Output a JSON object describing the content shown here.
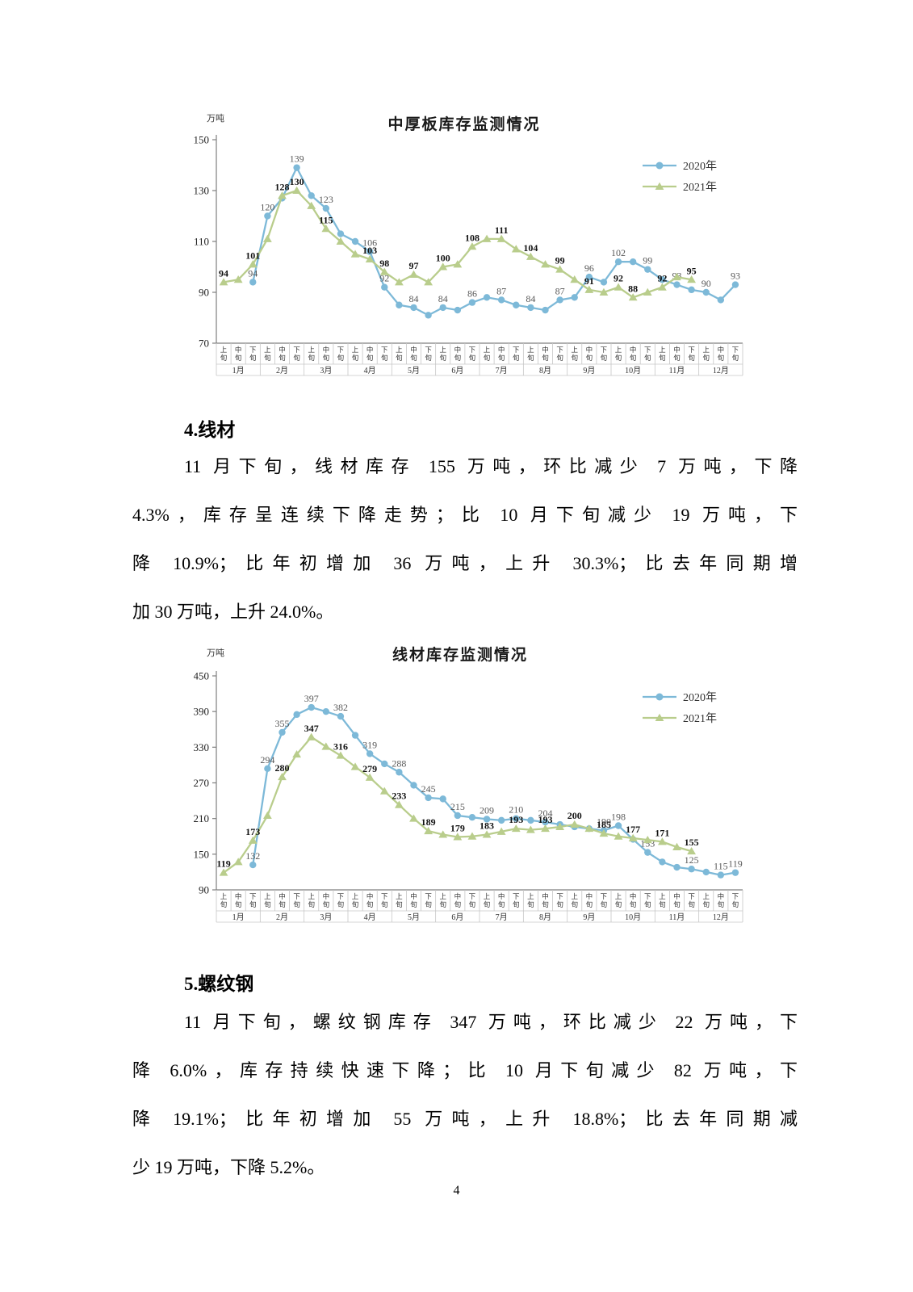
{
  "page": {
    "number": "4"
  },
  "sections": [
    {
      "heading": "4.线材",
      "lines": [
        "11 月下旬，线材库存 155 万吨，环比减少 7 万吨，下降",
        "4.3%，库存呈连续下降走势；比 10 月下旬减少 19 万吨，下",
        "降 10.9%；比年初增加 36 万吨，上升 30.3%；比去年同期增",
        "加 30 万吨，上升 24.0%。"
      ]
    },
    {
      "heading": "5.螺纹钢",
      "lines": [
        "11 月下旬，螺纹钢库存 347 万吨，环比减少 22 万吨，下",
        "降 6.0%，库存持续快速下降；比 10 月下旬减少 82 万吨，下",
        "降 19.1%；比年初增加 55 万吨，上升 18.8%；比去年同期减",
        "少 19 万吨，下降 5.2%。"
      ]
    }
  ],
  "colors": {
    "series_2020": "#7db9d8",
    "series_2021": "#b9cd8c",
    "label_2020": "#595959",
    "label_2021": "#111111",
    "axis_line": "#7f7f7f",
    "table_border": "#c6c6c6"
  },
  "chart_data": [
    {
      "id": "plate",
      "type": "line",
      "title": "中厚板库存监测情况",
      "unit_label": "万吨",
      "ylim": [
        70,
        150
      ],
      "yticks": [
        150,
        130,
        110,
        90,
        70
      ],
      "months": [
        "1月",
        "2月",
        "3月",
        "4月",
        "5月",
        "6月",
        "7月",
        "8月",
        "9月",
        "10月",
        "11月",
        "12月"
      ],
      "periods": [
        "上旬",
        "中旬",
        "下旬"
      ],
      "legend_position": "top-right",
      "grid": false,
      "series": [
        {
          "name": "2020年",
          "color": "#7db9d8",
          "marker": "circle",
          "label_style": "gray",
          "start_index": 2,
          "values": [
            94,
            120,
            127,
            139,
            128,
            123,
            113,
            110,
            106,
            92,
            85,
            84,
            81,
            84,
            83,
            86,
            88,
            87,
            85,
            84,
            83,
            87,
            88,
            96,
            94,
            102,
            102,
            99,
            95,
            93,
            91,
            90,
            87,
            93
          ],
          "point_labels": [
            [
              2,
              94
            ],
            [
              3,
              120
            ],
            [
              5,
              139
            ],
            [
              7,
              123
            ],
            [
              10,
              106
            ],
            [
              11,
              92
            ],
            [
              13,
              84
            ],
            [
              15,
              84
            ],
            [
              17,
              86
            ],
            [
              19,
              87
            ],
            [
              21,
              84
            ],
            [
              23,
              87
            ],
            [
              25,
              96
            ],
            [
              27,
              102
            ],
            [
              29,
              99
            ],
            [
              31,
              93
            ],
            [
              33,
              90
            ],
            [
              35,
              93
            ]
          ]
        },
        {
          "name": "2021年",
          "color": "#b9cd8c",
          "marker": "triangle",
          "label_style": "bold",
          "start_index": 0,
          "values": [
            94,
            95,
            101,
            111,
            128,
            130,
            124,
            115,
            110,
            105,
            103,
            98,
            94,
            97,
            94,
            100,
            101,
            108,
            111,
            111,
            107,
            104,
            101,
            99,
            95,
            91,
            90,
            92,
            88,
            90,
            92,
            96,
            95
          ],
          "point_labels": [
            [
              0,
              94
            ],
            [
              2,
              101
            ],
            [
              4,
              128
            ],
            [
              5,
              130
            ],
            [
              7,
              115
            ],
            [
              10,
              103
            ],
            [
              11,
              98
            ],
            [
              13,
              97
            ],
            [
              15,
              100
            ],
            [
              17,
              108
            ],
            [
              19,
              111
            ],
            [
              21,
              104
            ],
            [
              23,
              99
            ],
            [
              25,
              91
            ],
            [
              27,
              92
            ],
            [
              28,
              88
            ],
            [
              30,
              92
            ],
            [
              32,
              95
            ]
          ]
        }
      ]
    },
    {
      "id": "wire",
      "type": "line",
      "title": "线材库存监测情况",
      "unit_label": "万吨",
      "ylim": [
        90,
        450
      ],
      "yticks": [
        450,
        390,
        330,
        270,
        210,
        150,
        90
      ],
      "months": [
        "1月",
        "2月",
        "3月",
        "4月",
        "5月",
        "6月",
        "7月",
        "8月",
        "9月",
        "10月",
        "11月",
        "12月"
      ],
      "periods": [
        "上旬",
        "中旬",
        "下旬"
      ],
      "legend_position": "top-right",
      "grid": false,
      "series": [
        {
          "name": "2020年",
          "color": "#7db9d8",
          "marker": "circle",
          "label_style": "gray",
          "start_index": 2,
          "values": [
            132,
            294,
            355,
            385,
            397,
            390,
            382,
            350,
            319,
            302,
            288,
            266,
            245,
            243,
            215,
            212,
            209,
            207,
            210,
            207,
            204,
            200,
            196,
            193,
            190,
            198,
            175,
            153,
            137,
            128,
            125,
            120,
            115,
            119
          ],
          "point_labels": [
            [
              2,
              132
            ],
            [
              3,
              294
            ],
            [
              4,
              355
            ],
            [
              6,
              397
            ],
            [
              8,
              382
            ],
            [
              10,
              319
            ],
            [
              12,
              288
            ],
            [
              14,
              245
            ],
            [
              16,
              215
            ],
            [
              18,
              209
            ],
            [
              20,
              210
            ],
            [
              22,
              204
            ],
            [
              26,
              190
            ],
            [
              27,
              198
            ],
            [
              29,
              153
            ],
            [
              32,
              125
            ],
            [
              34,
              115
            ],
            [
              35,
              119
            ]
          ]
        },
        {
          "name": "2021年",
          "color": "#b9cd8c",
          "marker": "triangle",
          "label_style": "bold",
          "start_index": 0,
          "values": [
            119,
            137,
            173,
            215,
            280,
            318,
            347,
            331,
            316,
            297,
            279,
            256,
            233,
            210,
            189,
            183,
            179,
            180,
            183,
            188,
            193,
            191,
            193,
            196,
            200,
            193,
            185,
            180,
            177,
            174,
            171,
            162,
            155
          ],
          "point_labels": [
            [
              0,
              119
            ],
            [
              2,
              173
            ],
            [
              4,
              280
            ],
            [
              6,
              347
            ],
            [
              8,
              316
            ],
            [
              10,
              279
            ],
            [
              12,
              233
            ],
            [
              14,
              189
            ],
            [
              16,
              179
            ],
            [
              18,
              183
            ],
            [
              20,
              193
            ],
            [
              22,
              193
            ],
            [
              24,
              200
            ],
            [
              26,
              185
            ],
            [
              28,
              177
            ],
            [
              30,
              171
            ],
            [
              32,
              155
            ]
          ]
        }
      ]
    }
  ]
}
